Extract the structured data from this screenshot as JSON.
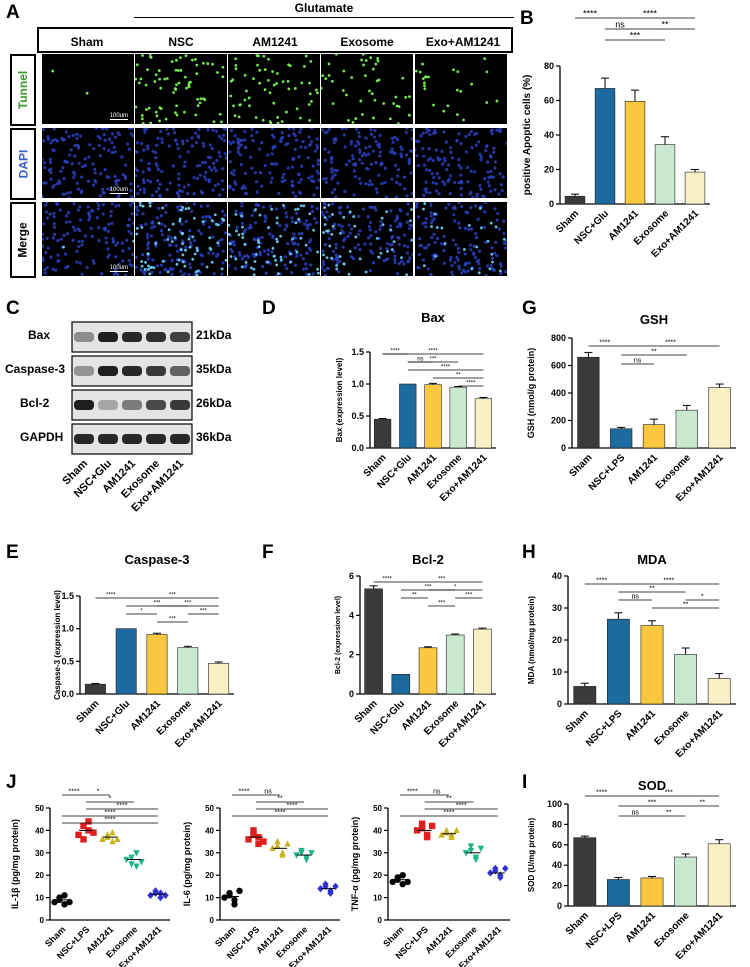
{
  "panels": {
    "A": "A",
    "B": "B",
    "C": "C",
    "D": "D",
    "E": "E",
    "F": "F",
    "G": "G",
    "H": "H",
    "I": "I",
    "J": "J"
  },
  "micro": {
    "treatment_label": "Glutamate",
    "columns": [
      "Sham",
      "NSC",
      "AM1241",
      "Exosome",
      "Exo+AM1241"
    ],
    "rows": [
      {
        "label": "Tunnel",
        "color": "#3a9a2a"
      },
      {
        "label": "DAPI",
        "color": "#3a5fc8"
      },
      {
        "label": "Merge",
        "color": "#000000"
      }
    ],
    "scale_bar": "100um",
    "green_density": [
      0.02,
      0.9,
      0.75,
      0.55,
      0.3
    ]
  },
  "western": {
    "bands": [
      {
        "label": "Bax",
        "kda": "21kDa",
        "intensity": [
          0.35,
          1,
          0.95,
          0.9,
          0.8
        ]
      },
      {
        "label": "Caspase-3",
        "kda": "35kDa",
        "intensity": [
          0.3,
          1,
          0.95,
          0.85,
          0.6
        ]
      },
      {
        "label": "Bcl-2",
        "kda": "26kDa",
        "intensity": [
          1,
          0.2,
          0.45,
          0.75,
          0.85
        ]
      },
      {
        "label": "GAPDH",
        "kda": "36kDa",
        "intensity": [
          0.95,
          0.95,
          0.95,
          0.95,
          0.95
        ]
      }
    ],
    "lanes": [
      "Sham",
      "NSC+Glu",
      "AM1241",
      "Exosome",
      "Exo+AM1241"
    ]
  },
  "colors": {
    "sham": "#3b3b3b",
    "nsc": "#1d6a9e",
    "am": "#f9c740",
    "exo": "#c9e8cf",
    "combo": "#f8efc4"
  },
  "chart_data": [
    {
      "id": "B",
      "type": "bar",
      "title": "",
      "ylabel": "positive Apoptic cells (%)",
      "categories": [
        "Sham",
        "NSC+Glu",
        "AM1241",
        "Exosome",
        "Exo+AM1241"
      ],
      "values": [
        4.5,
        67,
        59.5,
        34.5,
        18.5
      ],
      "errors": [
        1.2,
        6,
        6.5,
        4.5,
        1.5
      ],
      "ylim": [
        0,
        80
      ],
      "yticks": [
        0,
        20,
        40,
        60,
        80
      ],
      "sig": [
        {
          "from": 0,
          "to": 1,
          "label": "****",
          "level": 0
        },
        {
          "from": 1,
          "to": 2,
          "label": "ns",
          "level": 1
        },
        {
          "from": 1,
          "to": 3,
          "label": "***",
          "level": 2
        },
        {
          "from": 1,
          "to": 4,
          "label": "****",
          "level": 0
        },
        {
          "from": 2,
          "to": 4,
          "label": "**",
          "level": 1
        }
      ]
    },
    {
      "id": "D",
      "type": "bar",
      "title": "Bax",
      "ylabel": "Bax (expression level)",
      "categories": [
        "Sham",
        "NSC+Glu",
        "AM1241",
        "Exosome",
        "Exo+AM1241"
      ],
      "values": [
        0.45,
        1.0,
        0.99,
        0.95,
        0.77
      ],
      "errors": [
        0.01,
        0,
        0.02,
        0.01,
        0.02
      ],
      "ylim": [
        0,
        1.5
      ],
      "yticks": [
        0,
        0.5,
        1.0,
        1.5
      ],
      "yticklabels": [
        "0.0",
        "0.5",
        "1.0",
        "1.5"
      ],
      "sig": [
        {
          "from": 0,
          "to": 1,
          "label": "****",
          "level": 0
        },
        {
          "from": 0,
          "to": 4,
          "label": "****",
          "level": 0
        },
        {
          "from": 1,
          "to": 2,
          "label": "ns",
          "level": 1
        },
        {
          "from": 1,
          "to": 3,
          "label": "***",
          "level": 1
        },
        {
          "from": 1,
          "to": 4,
          "label": "****",
          "level": 2
        },
        {
          "from": 2,
          "to": 4,
          "label": "**",
          "level": 3
        },
        {
          "from": 3,
          "to": 4,
          "label": "****",
          "level": 4
        }
      ]
    },
    {
      "id": "E",
      "type": "bar",
      "title": "Caspase-3",
      "ylabel": "Caspase-3 (expression level)",
      "categories": [
        "Sham",
        "NSC+Glu",
        "AM1241",
        "Exosome",
        "Exo+AM1241"
      ],
      "values": [
        0.15,
        1.0,
        0.91,
        0.71,
        0.47
      ],
      "errors": [
        0.01,
        0,
        0.02,
        0.02,
        0.02
      ],
      "ylim": [
        0,
        1.5
      ],
      "yticks": [
        0,
        0.5,
        1.0,
        1.5
      ],
      "yticklabels": [
        "0.0",
        "0.5",
        "1.0",
        "1.5"
      ],
      "sig": [
        {
          "from": 0,
          "to": 1,
          "label": "****",
          "level": 0
        },
        {
          "from": 1,
          "to": 4,
          "label": "***",
          "level": 0
        },
        {
          "from": 1,
          "to": 3,
          "label": "***",
          "level": 1
        },
        {
          "from": 2,
          "to": 4,
          "label": "***",
          "level": 1
        },
        {
          "from": 1,
          "to": 2,
          "label": "*",
          "level": 2
        },
        {
          "from": 3,
          "to": 4,
          "label": "***",
          "level": 2
        },
        {
          "from": 2,
          "to": 3,
          "label": "***",
          "level": 3
        }
      ]
    },
    {
      "id": "F",
      "type": "bar",
      "title": "Bcl-2",
      "ylabel": "Bcl-2 (expression level)",
      "categories": [
        "Sham",
        "NSC+Glu",
        "AM1241",
        "Exosome",
        "Exo+AM1241"
      ],
      "values": [
        5.35,
        1.0,
        2.35,
        3.0,
        3.3
      ],
      "errors": [
        0.15,
        0,
        0.05,
        0.05,
        0.05
      ],
      "ylim": [
        0,
        6
      ],
      "yticks": [
        0,
        2,
        4,
        6
      ],
      "sig": [
        {
          "from": 0,
          "to": 1,
          "label": "****",
          "level": 0
        },
        {
          "from": 1,
          "to": 4,
          "label": "***",
          "level": 0
        },
        {
          "from": 1,
          "to": 3,
          "label": "***",
          "level": 1
        },
        {
          "from": 2,
          "to": 4,
          "label": "*",
          "level": 1
        },
        {
          "from": 1,
          "to": 2,
          "label": "**",
          "level": 2
        },
        {
          "from": 3,
          "to": 4,
          "label": "***",
          "level": 2
        },
        {
          "from": 2,
          "to": 3,
          "label": "***",
          "level": 3
        }
      ]
    },
    {
      "id": "G",
      "type": "bar",
      "title": "GSH",
      "ylabel": "GSH (nmol/g protein)",
      "categories": [
        "Sham",
        "NSC+LPS",
        "AM1241",
        "Exosome",
        "Exo+AM1241"
      ],
      "values": [
        660,
        140,
        170,
        275,
        440
      ],
      "errors": [
        35,
        10,
        40,
        35,
        25
      ],
      "ylim": [
        0,
        800
      ],
      "yticks": [
        0,
        200,
        400,
        600,
        800
      ],
      "sig": [
        {
          "from": 0,
          "to": 1,
          "label": "****",
          "level": 0
        },
        {
          "from": 1,
          "to": 4,
          "label": "****",
          "level": 0
        },
        {
          "from": 1,
          "to": 3,
          "label": "**",
          "level": 1
        },
        {
          "from": 1,
          "to": 2,
          "label": "ns",
          "level": 2
        }
      ]
    },
    {
      "id": "H",
      "type": "bar",
      "title": "MDA",
      "ylabel": "MDA (nmol/mg protein)",
      "categories": [
        "Sham",
        "NSC+LPS",
        "AM1241",
        "Exosome",
        "Exo+AM1241"
      ],
      "values": [
        5.5,
        26.5,
        24.5,
        15.5,
        8
      ],
      "errors": [
        1,
        2,
        1.5,
        2,
        1.5
      ],
      "ylim": [
        0,
        40
      ],
      "yticks": [
        0,
        10,
        20,
        30,
        40
      ],
      "sig": [
        {
          "from": 0,
          "to": 1,
          "label": "****",
          "level": 0
        },
        {
          "from": 1,
          "to": 4,
          "label": "****",
          "level": 0
        },
        {
          "from": 1,
          "to": 3,
          "label": "**",
          "level": 1
        },
        {
          "from": 1,
          "to": 2,
          "label": "ns",
          "level": 2
        },
        {
          "from": 3,
          "to": 4,
          "label": "*",
          "level": 2
        },
        {
          "from": 2,
          "to": 4,
          "label": "**",
          "level": 3
        }
      ]
    },
    {
      "id": "I",
      "type": "bar",
      "title": "SOD",
      "ylabel": "SOD (U/mg protein)",
      "categories": [
        "Sham",
        "NSC+LPS",
        "AM1241",
        "Exosome",
        "Exo+AM1241"
      ],
      "values": [
        67,
        26,
        27.5,
        48,
        61
      ],
      "errors": [
        1.5,
        2,
        1.5,
        3,
        4
      ],
      "ylim": [
        0,
        100
      ],
      "yticks": [
        0,
        20,
        40,
        60,
        80,
        100
      ],
      "sig": [
        {
          "from": 0,
          "to": 1,
          "label": "****",
          "level": 0
        },
        {
          "from": 1,
          "to": 4,
          "label": "***",
          "level": 0
        },
        {
          "from": 1,
          "to": 3,
          "label": "***",
          "level": 1
        },
        {
          "from": 3,
          "to": 4,
          "label": "**",
          "level": 1
        },
        {
          "from": 1,
          "to": 2,
          "label": "ns",
          "level": 2
        },
        {
          "from": 2,
          "to": 3,
          "label": "**",
          "level": 2
        }
      ]
    },
    {
      "id": "J1",
      "type": "scatter",
      "title": "",
      "ylabel": "IL-1β  (pg/mg protein)",
      "categories": [
        "Sham",
        "NSC+LPS",
        "AM1241",
        "Exosome",
        "Exo+AM1241"
      ],
      "values": [
        [
          8,
          10,
          7,
          9,
          11,
          8
        ],
        [
          38,
          42,
          40,
          36,
          44,
          39
        ],
        [
          36,
          38,
          35,
          37,
          39,
          36
        ],
        [
          27,
          25,
          30,
          28,
          24,
          26
        ],
        [
          11,
          12,
          10,
          13,
          12,
          11
        ]
      ],
      "means": [
        9,
        40,
        37,
        27,
        11.5
      ],
      "markers": [
        "circle",
        "square",
        "triangle-up",
        "triangle-down",
        "diamond"
      ],
      "mcolors": [
        "#000000",
        "#e02020",
        "#c8b41e",
        "#1ab38a",
        "#3030d0"
      ],
      "ylim": [
        0,
        50
      ],
      "yticks": [
        0,
        10,
        20,
        30,
        40,
        50
      ],
      "sig": [
        {
          "from": 0,
          "to": 1,
          "label": "****",
          "level": 0
        },
        {
          "from": 1,
          "to": 2,
          "label": "*",
          "level": 0
        },
        {
          "from": 1,
          "to": 3,
          "label": "*",
          "level": 1
        },
        {
          "from": 1,
          "to": 4,
          "label": "****",
          "level": 2
        },
        {
          "from": 0,
          "to": 4,
          "label": "****",
          "level": 3
        },
        {
          "from": 0,
          "to": 4,
          "label": "****",
          "level": 4
        }
      ]
    },
    {
      "id": "J2",
      "type": "scatter",
      "title": "",
      "ylabel": "IL-6  (pg/mg protein)",
      "categories": [
        "Sham",
        "NSC+LPS",
        "AM1241",
        "Exosome",
        "Exo+AM1241"
      ],
      "values": [
        [
          10,
          12,
          9,
          11,
          7,
          13
        ],
        [
          36,
          38,
          34,
          40,
          37,
          35
        ],
        [
          32,
          35,
          30,
          33,
          29,
          34
        ],
        [
          29,
          31,
          28,
          30,
          27,
          30
        ],
        [
          14,
          16,
          13,
          15,
          12,
          15
        ]
      ],
      "means": [
        10.5,
        37,
        32,
        29,
        14
      ],
      "markers": [
        "circle",
        "square",
        "triangle-up",
        "triangle-down",
        "diamond"
      ],
      "mcolors": [
        "#000000",
        "#e02020",
        "#c8b41e",
        "#1ab38a",
        "#3030d0"
      ],
      "ylim": [
        0,
        50
      ],
      "yticks": [
        0,
        10,
        20,
        30,
        40,
        50
      ],
      "sig": [
        {
          "from": 0,
          "to": 1,
          "label": "****",
          "level": 0
        },
        {
          "from": 1,
          "to": 2,
          "label": "ns",
          "level": 0
        },
        {
          "from": 1,
          "to": 3,
          "label": "**",
          "level": 1
        },
        {
          "from": 1,
          "to": 4,
          "label": "****",
          "level": 2
        },
        {
          "from": 0,
          "to": 4,
          "label": "****",
          "level": 3
        }
      ]
    },
    {
      "id": "J3",
      "type": "scatter",
      "title": "",
      "ylabel": "TNF-α  (pg/mg protein)",
      "categories": [
        "Sham",
        "NSC+LPS",
        "AM1241",
        "Exosome",
        "Exo+AM1241"
      ],
      "values": [
        [
          17,
          19,
          16,
          18,
          20,
          17
        ],
        [
          40,
          43,
          37,
          41,
          38,
          42
        ],
        [
          38,
          40,
          37,
          39,
          38,
          40
        ],
        [
          30,
          33,
          28,
          31,
          27,
          32
        ],
        [
          21,
          23,
          19,
          22,
          20,
          23
        ]
      ],
      "means": [
        18,
        40,
        38.5,
        30,
        21
      ],
      "markers": [
        "circle",
        "square",
        "triangle-up",
        "triangle-down",
        "diamond"
      ],
      "mcolors": [
        "#000000",
        "#e02020",
        "#c8b41e",
        "#1ab38a",
        "#3030d0"
      ],
      "ylim": [
        0,
        50
      ],
      "yticks": [
        0,
        10,
        20,
        30,
        40,
        50
      ],
      "sig": [
        {
          "from": 0,
          "to": 1,
          "label": "****",
          "level": 0
        },
        {
          "from": 1,
          "to": 2,
          "label": "ns",
          "level": 0
        },
        {
          "from": 1,
          "to": 3,
          "label": "**",
          "level": 1
        },
        {
          "from": 1,
          "to": 4,
          "label": "****",
          "level": 2
        },
        {
          "from": 0,
          "to": 4,
          "label": "****",
          "level": 3
        }
      ]
    }
  ]
}
